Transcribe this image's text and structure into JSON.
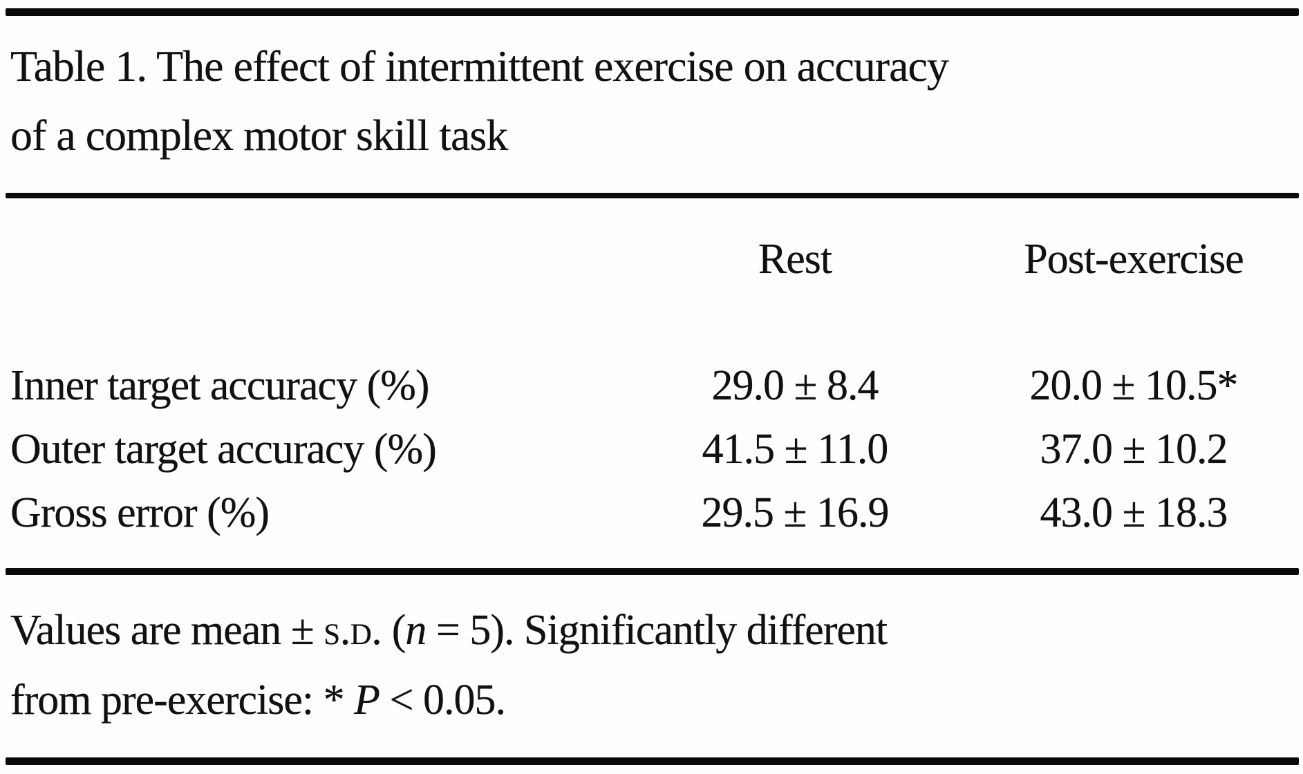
{
  "table": {
    "title_line1": "Table 1. The effect of intermittent exercise on accuracy",
    "title_line2": "of a complex motor skill task",
    "columns": {
      "rest": "Rest",
      "post": "Post-exercise"
    },
    "rows": [
      {
        "label": "Inner target accuracy (%)",
        "rest": "29.0 ± 8.4",
        "post": "20.0 ± 10.5*"
      },
      {
        "label": "Outer target accuracy (%)",
        "rest": "41.5 ± 11.0",
        "post": "37.0 ± 10.2"
      },
      {
        "label": "Gross error (%)",
        "rest": "29.5 ± 16.9",
        "post": "43.0 ± 18.3"
      }
    ],
    "footnote": {
      "part1": "Values are mean ± ",
      "sd": "s.d.",
      "part2": " (",
      "n": "n",
      "part3": " = 5). Significantly different",
      "part4": "from pre-exercise: * ",
      "p": "P",
      "part5": " < 0.05."
    }
  },
  "chart_data": {
    "type": "table",
    "title": "Table 1. The effect of intermittent exercise on accuracy of a complex motor skill task",
    "columns": [
      "",
      "Rest",
      "Post-exercise"
    ],
    "rows": [
      [
        "Inner target accuracy (%)",
        "29.0 ± 8.4",
        "20.0 ± 10.5*"
      ],
      [
        "Outer target accuracy (%)",
        "41.5 ± 11.0",
        "37.0 ± 10.2"
      ],
      [
        "Gross error (%)",
        "29.5 ± 16.9",
        "43.0 ± 18.3"
      ]
    ],
    "footnote": "Values are mean ± s.d. (n = 5). Significantly different from pre-exercise: * P < 0.05."
  }
}
